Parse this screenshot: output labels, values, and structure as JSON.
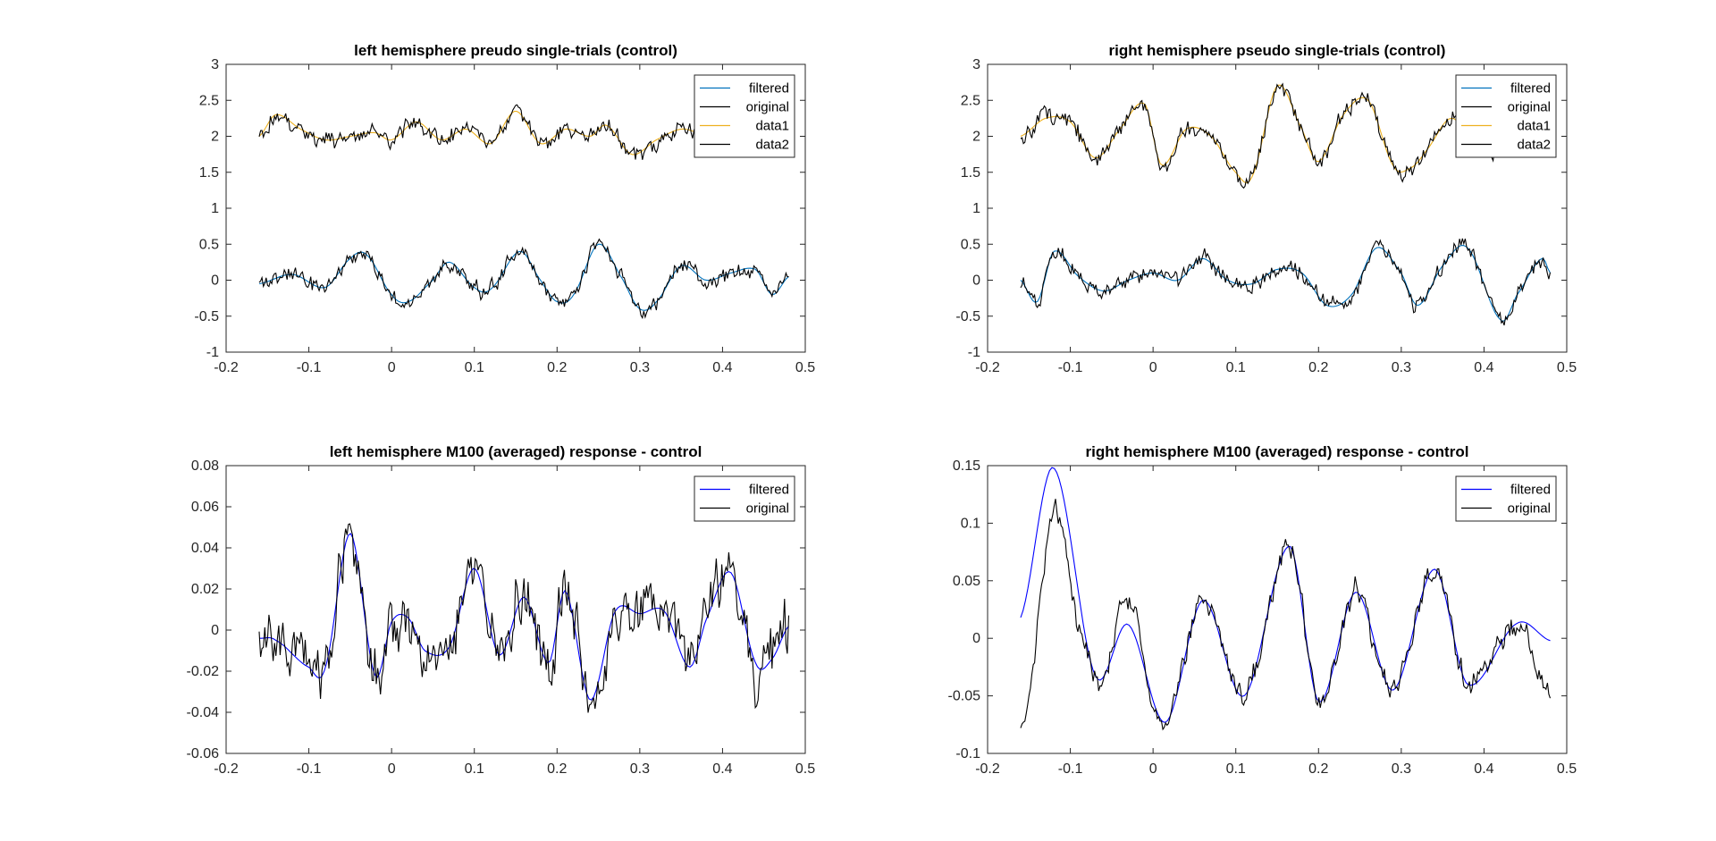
{
  "figure": {
    "background": "#ffffff",
    "axis_color": "#262626",
    "legend_border": "#262626"
  },
  "chart_data": [
    {
      "type": "line",
      "title": "left hemisphere preudo single-trials (control)",
      "xlabel": "",
      "ylabel": "",
      "xlim": [
        -0.2,
        0.5
      ],
      "ylim": [
        -1,
        3
      ],
      "xticks": [
        -0.2,
        -0.1,
        0,
        0.1,
        0.2,
        0.3,
        0.4,
        0.5
      ],
      "xtick_labels": [
        "-0.2",
        "-0.1",
        "0",
        "0.1",
        "0.2",
        "0.3",
        "0.4",
        "0.5"
      ],
      "yticks": [
        -1,
        -0.5,
        0,
        0.5,
        1,
        1.5,
        2,
        2.5,
        3
      ],
      "ytick_labels": [
        "-1",
        "-0.5",
        "0",
        "0.5",
        "1",
        "1.5",
        "2",
        "2.5",
        "3"
      ],
      "grid": false,
      "legend_position": "top-right",
      "series": [
        {
          "name": "filtered",
          "color": "#0072BD",
          "offset": 0,
          "x": [
            -0.16,
            -0.12,
            -0.08,
            -0.05,
            -0.03,
            0.0,
            0.02,
            0.05,
            0.07,
            0.1,
            0.12,
            0.155,
            0.18,
            0.2,
            0.22,
            0.25,
            0.28,
            0.3,
            0.32,
            0.35,
            0.38,
            0.41,
            0.44,
            0.46,
            0.48
          ],
          "y": [
            -0.05,
            0.08,
            -0.1,
            0.3,
            0.35,
            -0.2,
            -0.3,
            0.0,
            0.25,
            -0.1,
            -0.12,
            0.4,
            0.0,
            -0.3,
            -0.2,
            0.5,
            0.0,
            -0.4,
            -0.3,
            0.2,
            0.0,
            0.1,
            0.15,
            -0.2,
            0.05
          ],
          "smooth": true,
          "noise": 0
        },
        {
          "name": "original",
          "color": "#000000",
          "offset": 0,
          "x": [
            -0.16,
            -0.12,
            -0.08,
            -0.05,
            -0.03,
            0.0,
            0.02,
            0.05,
            0.07,
            0.1,
            0.12,
            0.155,
            0.18,
            0.2,
            0.22,
            0.25,
            0.28,
            0.3,
            0.32,
            0.35,
            0.38,
            0.41,
            0.44,
            0.46,
            0.48
          ],
          "y": [
            -0.05,
            0.08,
            -0.1,
            0.3,
            0.35,
            -0.2,
            -0.3,
            0.0,
            0.25,
            -0.1,
            -0.12,
            0.4,
            0.0,
            -0.3,
            -0.2,
            0.5,
            0.0,
            -0.4,
            -0.3,
            0.2,
            0.0,
            0.1,
            0.15,
            -0.2,
            0.05
          ],
          "smooth": true,
          "noise": 0.14
        },
        {
          "name": "data1",
          "color": "#EDB120",
          "offset": 0,
          "x": [
            -0.16,
            -0.14,
            -0.11,
            -0.08,
            -0.05,
            -0.02,
            0.0,
            0.03,
            0.06,
            0.09,
            0.12,
            0.15,
            0.18,
            0.21,
            0.24,
            0.26,
            0.29,
            0.32,
            0.35,
            0.38,
            0.41,
            0.44,
            0.47,
            0.48
          ],
          "y": [
            2.0,
            2.3,
            2.1,
            1.95,
            2.0,
            2.05,
            1.95,
            2.2,
            1.95,
            2.1,
            1.9,
            2.35,
            1.9,
            2.1,
            2.0,
            2.15,
            1.75,
            1.95,
            2.1,
            2.05,
            2.3,
            2.0,
            2.05,
            1.95
          ],
          "smooth": true,
          "noise": 0
        },
        {
          "name": "data2",
          "color": "#000000",
          "offset": 0,
          "x": [
            -0.16,
            -0.14,
            -0.11,
            -0.08,
            -0.05,
            -0.02,
            0.0,
            0.03,
            0.06,
            0.09,
            0.12,
            0.15,
            0.18,
            0.21,
            0.24,
            0.26,
            0.29,
            0.32,
            0.35,
            0.38,
            0.41,
            0.44,
            0.47,
            0.48
          ],
          "y": [
            2.0,
            2.3,
            2.1,
            1.95,
            2.0,
            2.05,
            1.95,
            2.2,
            1.95,
            2.1,
            1.9,
            2.35,
            1.9,
            2.1,
            2.0,
            2.15,
            1.75,
            1.95,
            2.1,
            2.05,
            2.3,
            2.0,
            2.05,
            1.95
          ],
          "smooth": true,
          "noise": 0.15
        }
      ]
    },
    {
      "type": "line",
      "title": "right hemisphere pseudo single-trials (control)",
      "xlabel": "",
      "ylabel": "",
      "xlim": [
        -0.2,
        0.5
      ],
      "ylim": [
        -1,
        3
      ],
      "xticks": [
        -0.2,
        -0.1,
        0,
        0.1,
        0.2,
        0.3,
        0.4,
        0.5
      ],
      "xtick_labels": [
        "-0.2",
        "-0.1",
        "0",
        "0.1",
        "0.2",
        "0.3",
        "0.4",
        "0.5"
      ],
      "yticks": [
        -1,
        -0.5,
        0,
        0.5,
        1,
        1.5,
        2,
        2.5,
        3
      ],
      "ytick_labels": [
        "-1",
        "-0.5",
        "0",
        "0.5",
        "1",
        "1.5",
        "2",
        "2.5",
        "3"
      ],
      "grid": false,
      "legend_position": "top-right",
      "series": [
        {
          "name": "filtered",
          "color": "#0072BD",
          "offset": 0,
          "x": [
            -0.16,
            -0.14,
            -0.12,
            -0.09,
            -0.06,
            -0.03,
            0.0,
            0.03,
            0.06,
            0.09,
            0.12,
            0.15,
            0.18,
            0.21,
            0.24,
            0.27,
            0.3,
            0.32,
            0.35,
            0.38,
            0.42,
            0.44,
            0.47,
            0.48
          ],
          "y": [
            0.0,
            -0.3,
            0.4,
            0.05,
            -0.15,
            0.0,
            0.1,
            0.0,
            0.3,
            0.0,
            -0.05,
            0.15,
            0.1,
            -0.35,
            -0.2,
            0.45,
            0.1,
            -0.35,
            0.2,
            0.45,
            -0.55,
            -0.2,
            0.3,
            0.1
          ],
          "smooth": true,
          "noise": 0
        },
        {
          "name": "original",
          "color": "#000000",
          "offset": 0,
          "x": [
            -0.16,
            -0.14,
            -0.12,
            -0.09,
            -0.06,
            -0.03,
            0.0,
            0.03,
            0.06,
            0.09,
            0.12,
            0.15,
            0.18,
            0.21,
            0.24,
            0.27,
            0.3,
            0.32,
            0.35,
            0.38,
            0.42,
            0.44,
            0.47,
            0.48
          ],
          "y": [
            0.0,
            -0.3,
            0.4,
            0.05,
            -0.15,
            0.0,
            0.1,
            0.0,
            0.3,
            0.0,
            -0.05,
            0.15,
            0.1,
            -0.35,
            -0.2,
            0.45,
            0.1,
            -0.35,
            0.2,
            0.45,
            -0.55,
            -0.2,
            0.3,
            0.1
          ],
          "smooth": true,
          "noise": 0.14
        },
        {
          "name": "data1",
          "color": "#EDB120",
          "offset": 0,
          "x": [
            -0.16,
            -0.13,
            -0.1,
            -0.07,
            -0.04,
            -0.01,
            0.01,
            0.04,
            0.07,
            0.1,
            0.12,
            0.15,
            0.18,
            0.2,
            0.23,
            0.26,
            0.29,
            0.31,
            0.33,
            0.36,
            0.39,
            0.42,
            0.45,
            0.48
          ],
          "y": [
            2.0,
            2.25,
            2.2,
            1.7,
            2.1,
            2.45,
            1.6,
            2.1,
            2.0,
            1.5,
            1.45,
            2.7,
            2.1,
            1.65,
            2.3,
            2.5,
            1.6,
            1.55,
            1.8,
            2.25,
            1.9,
            1.85,
            2.2,
            1.95
          ],
          "smooth": true,
          "noise": 0
        },
        {
          "name": "data2",
          "color": "#000000",
          "offset": 0,
          "x": [
            -0.16,
            -0.13,
            -0.1,
            -0.07,
            -0.04,
            -0.01,
            0.01,
            0.04,
            0.07,
            0.1,
            0.12,
            0.15,
            0.18,
            0.2,
            0.23,
            0.26,
            0.29,
            0.31,
            0.33,
            0.36,
            0.39,
            0.42,
            0.45,
            0.48
          ],
          "y": [
            2.0,
            2.25,
            2.2,
            1.7,
            2.1,
            2.45,
            1.6,
            2.1,
            2.0,
            1.5,
            1.45,
            2.7,
            2.1,
            1.65,
            2.3,
            2.5,
            1.6,
            1.55,
            1.8,
            2.25,
            1.9,
            1.85,
            2.2,
            1.95
          ],
          "smooth": true,
          "noise": 0.15
        }
      ]
    },
    {
      "type": "line",
      "title": "left hemisphere M100 (averaged) response - control",
      "xlabel": "",
      "ylabel": "",
      "xlim": [
        -0.2,
        0.5
      ],
      "ylim": [
        -0.06,
        0.08
      ],
      "xticks": [
        -0.2,
        -0.1,
        0,
        0.1,
        0.2,
        0.3,
        0.4,
        0.5
      ],
      "xtick_labels": [
        "-0.2",
        "-0.1",
        "0",
        "0.1",
        "0.2",
        "0.3",
        "0.4",
        "0.5"
      ],
      "yticks": [
        -0.06,
        -0.04,
        -0.02,
        0,
        0.02,
        0.04,
        0.06,
        0.08
      ],
      "ytick_labels": [
        "-0.06",
        "-0.04",
        "-0.02",
        "0",
        "0.02",
        "0.04",
        "0.06",
        "0.08"
      ],
      "grid": false,
      "legend_position": "top-right",
      "series": [
        {
          "name": "filtered",
          "color": "#0000FF",
          "offset": 0,
          "x": [
            -0.16,
            -0.14,
            -0.1,
            -0.08,
            -0.05,
            -0.02,
            0.0,
            0.02,
            0.04,
            0.07,
            0.1,
            0.13,
            0.16,
            0.19,
            0.21,
            0.24,
            0.27,
            0.3,
            0.33,
            0.36,
            0.38,
            0.41,
            0.44,
            0.46,
            0.48
          ],
          "y": [
            -0.004,
            -0.005,
            -0.018,
            -0.018,
            0.047,
            -0.022,
            0.004,
            0.006,
            -0.01,
            -0.008,
            0.03,
            -0.012,
            0.016,
            -0.016,
            0.019,
            -0.034,
            0.009,
            0.008,
            0.009,
            -0.018,
            0.005,
            0.028,
            -0.016,
            -0.014,
            0.002
          ],
          "smooth": true,
          "noise": 0
        },
        {
          "name": "original",
          "color": "#000000",
          "offset": 0,
          "x": [
            -0.16,
            -0.14,
            -0.1,
            -0.08,
            -0.05,
            -0.02,
            0.0,
            0.02,
            0.04,
            0.07,
            0.1,
            0.13,
            0.16,
            0.19,
            0.21,
            0.24,
            0.27,
            0.3,
            0.33,
            0.36,
            0.38,
            0.41,
            0.44,
            0.46,
            0.48
          ],
          "y": [
            -0.004,
            -0.005,
            -0.018,
            -0.018,
            0.047,
            -0.022,
            0.004,
            0.006,
            -0.01,
            -0.008,
            0.03,
            -0.012,
            0.016,
            -0.016,
            0.019,
            -0.034,
            0.009,
            0.008,
            0.009,
            -0.018,
            0.005,
            0.028,
            -0.016,
            -0.014,
            0.002
          ],
          "smooth": true,
          "noise": 0.019
        }
      ]
    },
    {
      "type": "line",
      "title": "right hemisphere M100 (averaged) response - control",
      "xlabel": "",
      "ylabel": "",
      "xlim": [
        -0.2,
        0.5
      ],
      "ylim": [
        -0.1,
        0.15
      ],
      "xticks": [
        -0.2,
        -0.1,
        0,
        0.1,
        0.2,
        0.3,
        0.4,
        0.5
      ],
      "xtick_labels": [
        "-0.2",
        "-0.1",
        "0",
        "0.1",
        "0.2",
        "0.3",
        "0.4",
        "0.5"
      ],
      "yticks": [
        -0.1,
        -0.05,
        0,
        0.05,
        0.1,
        0.15
      ],
      "ytick_labels": [
        "-0.1",
        "-0.05",
        "0",
        "0.05",
        "0.1",
        "0.15"
      ],
      "grid": false,
      "legend_position": "top-right",
      "series": [
        {
          "name": "filtered",
          "color": "#0000FF",
          "offset": 0,
          "x": [
            -0.16,
            -0.12,
            -0.07,
            -0.03,
            0.015,
            0.06,
            0.11,
            0.165,
            0.2,
            0.245,
            0.29,
            0.34,
            0.38,
            0.44,
            0.48
          ],
          "y": [
            0.018,
            0.148,
            -0.032,
            0.012,
            -0.073,
            0.033,
            -0.05,
            0.08,
            -0.055,
            0.04,
            -0.045,
            0.06,
            -0.04,
            0.013,
            -0.002
          ],
          "smooth": true,
          "noise": 0
        },
        {
          "name": "original",
          "color": "#000000",
          "offset": 0,
          "x": [
            -0.16,
            -0.15,
            -0.12,
            -0.09,
            -0.06,
            -0.03,
            0.0,
            0.015,
            0.06,
            0.11,
            0.165,
            0.2,
            0.245,
            0.29,
            0.34,
            0.38,
            0.44,
            0.48
          ],
          "y": [
            -0.083,
            -0.05,
            0.11,
            0.01,
            -0.04,
            0.04,
            -0.05,
            -0.073,
            0.033,
            -0.05,
            0.08,
            -0.055,
            0.04,
            -0.045,
            0.06,
            -0.04,
            0.013,
            -0.045
          ],
          "smooth": true,
          "noise": 0.013
        }
      ]
    }
  ]
}
